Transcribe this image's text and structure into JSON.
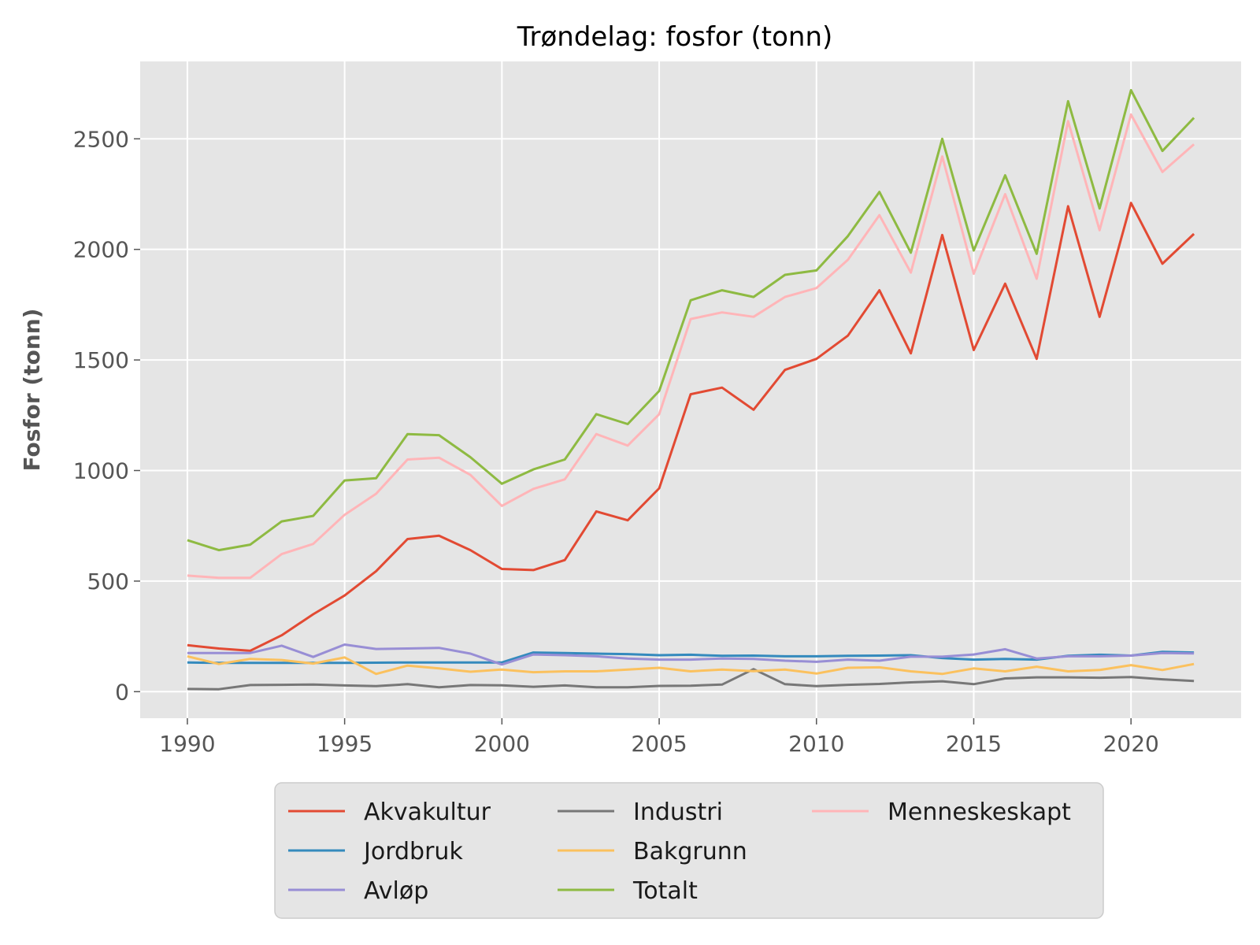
{
  "chart_data": {
    "type": "line",
    "title": "Trøndelag: fosfor (tonn)",
    "xlabel": "",
    "ylabel": "Fosfor (tonn)",
    "xlim": [
      1988.5,
      2023.5
    ],
    "ylim": [
      -120,
      2850
    ],
    "grid": true,
    "legend_position": "bottom",
    "x": [
      1990,
      1991,
      1992,
      1993,
      1994,
      1995,
      1996,
      1997,
      1998,
      1999,
      2000,
      2001,
      2002,
      2003,
      2004,
      2005,
      2006,
      2007,
      2008,
      2009,
      2010,
      2011,
      2012,
      2013,
      2014,
      2015,
      2016,
      2017,
      2018,
      2019,
      2020,
      2021,
      2022
    ],
    "x_ticks": [
      "1990",
      "1995",
      "2000",
      "2005",
      "2010",
      "2015",
      "2020"
    ],
    "y_ticks": [
      "0",
      "500",
      "1000",
      "1500",
      "2000",
      "2500"
    ],
    "series": [
      {
        "name": "Akvakultur",
        "color": "#E24A33",
        "values": [
          210,
          195,
          185,
          255,
          350,
          435,
          545,
          690,
          705,
          640,
          555,
          550,
          595,
          815,
          775,
          920,
          1345,
          1375,
          1275,
          1455,
          1505,
          1610,
          1815,
          1530,
          2065,
          1545,
          1845,
          1505,
          2195,
          1695,
          2210,
          1935,
          2070
        ]
      },
      {
        "name": "Jordbruk",
        "color": "#348ABD",
        "values": [
          132,
          130,
          130,
          130,
          130,
          130,
          131,
          132,
          132,
          132,
          132,
          177,
          175,
          172,
          170,
          165,
          167,
          162,
          163,
          160,
          160,
          162,
          163,
          165,
          152,
          145,
          148,
          145,
          162,
          167,
          163,
          180,
          177
        ]
      },
      {
        "name": "Avløp",
        "color": "#988ED5",
        "values": [
          175,
          175,
          175,
          208,
          157,
          213,
          193,
          195,
          198,
          172,
          123,
          168,
          165,
          160,
          150,
          145,
          145,
          150,
          148,
          140,
          135,
          145,
          140,
          158,
          158,
          168,
          192,
          150,
          160,
          160,
          163,
          175,
          173
        ]
      },
      {
        "name": "Industri",
        "color": "#777777",
        "values": [
          12,
          11,
          30,
          31,
          32,
          28,
          25,
          34,
          20,
          30,
          29,
          22,
          28,
          20,
          20,
          26,
          27,
          32,
          102,
          34,
          25,
          31,
          35,
          42,
          47,
          34,
          60,
          65,
          65,
          63,
          66,
          56,
          48
        ]
      },
      {
        "name": "Bakgrunn",
        "color": "#FBC15E",
        "values": [
          160,
          125,
          148,
          143,
          127,
          155,
          80,
          118,
          105,
          90,
          100,
          88,
          92,
          92,
          100,
          108,
          92,
          100,
          93,
          100,
          82,
          108,
          110,
          92,
          80,
          105,
          92,
          113,
          92,
          98,
          120,
          98,
          125
        ]
      },
      {
        "name": "Totalt",
        "color": "#8EBA42",
        "values": [
          685,
          640,
          665,
          770,
          795,
          955,
          965,
          1165,
          1160,
          1060,
          940,
          1005,
          1050,
          1255,
          1210,
          1360,
          1770,
          1815,
          1785,
          1885,
          1905,
          2060,
          2260,
          1985,
          2500,
          1995,
          2335,
          1980,
          2670,
          2185,
          2720,
          2445,
          2595
        ]
      },
      {
        "name": "Menneskeskapt",
        "color": "#FFB5B8",
        "values": [
          525,
          515,
          515,
          622,
          668,
          800,
          895,
          1050,
          1058,
          980,
          840,
          917,
          960,
          1165,
          1113,
          1255,
          1685,
          1715,
          1695,
          1785,
          1825,
          1953,
          2155,
          1895,
          2420,
          1890,
          2250,
          1867,
          2580,
          2087,
          2610,
          2350,
          2475
        ]
      }
    ]
  }
}
